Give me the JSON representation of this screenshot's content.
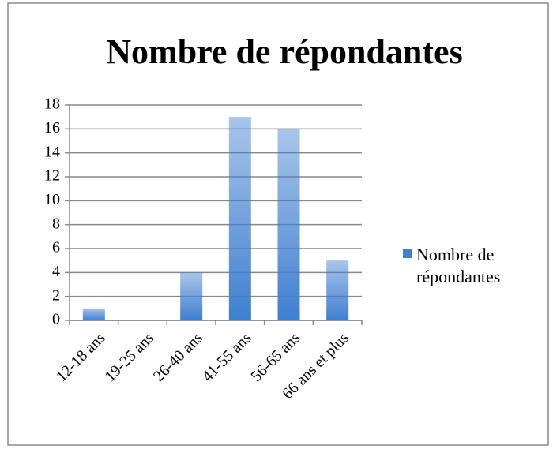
{
  "chart_data": {
    "type": "bar",
    "title": "Nombre de répondantes",
    "categories": [
      "12-18 ans",
      "19-25 ans",
      "26-40 ans",
      "41-55 ans",
      "56-65 ans",
      "66 ans et plus"
    ],
    "series": [
      {
        "name": "Nombre de répondantes",
        "color": "#3f7fd0",
        "values": [
          1,
          0,
          4,
          17,
          16,
          5
        ]
      }
    ],
    "ylim": [
      0,
      18
    ],
    "yticks": [
      0,
      2,
      4,
      6,
      8,
      10,
      12,
      14,
      16,
      18
    ],
    "grid": true,
    "legend": "right"
  }
}
